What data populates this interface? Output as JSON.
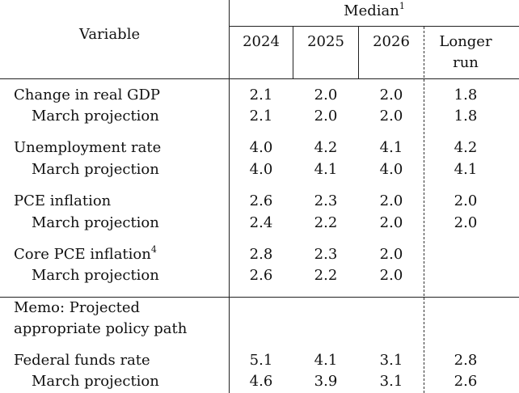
{
  "header": {
    "variable_label": "Variable",
    "median_label": "Median",
    "median_footnote": "1",
    "years": [
      "2024",
      "2025",
      "2026"
    ],
    "longer_run_line1": "Longer",
    "longer_run_line2": "run"
  },
  "rows": [
    {
      "label": "Change in real GDP",
      "values": [
        "2.1",
        "2.0",
        "2.0",
        "1.8"
      ]
    },
    {
      "label": "March projection",
      "values": [
        "2.1",
        "2.0",
        "2.0",
        "1.8"
      ]
    },
    {
      "label": "Unemployment rate",
      "values": [
        "4.0",
        "4.2",
        "4.1",
        "4.2"
      ]
    },
    {
      "label": "March projection",
      "values": [
        "4.0",
        "4.1",
        "4.0",
        "4.1"
      ]
    },
    {
      "label": "PCE inflation",
      "values": [
        "2.6",
        "2.3",
        "2.0",
        "2.0"
      ]
    },
    {
      "label": "March projection",
      "values": [
        "2.4",
        "2.2",
        "2.0",
        "2.0"
      ]
    },
    {
      "label": "Core PCE inflation",
      "footnote": "4",
      "values": [
        "2.8",
        "2.3",
        "2.0",
        ""
      ]
    },
    {
      "label": "March projection",
      "values": [
        "2.6",
        "2.2",
        "2.0",
        ""
      ]
    }
  ],
  "memo": {
    "line1": "Memo: Projected",
    "line2": "appropriate policy path"
  },
  "memo_rows": [
    {
      "label": "Federal funds rate",
      "values": [
        "5.1",
        "4.1",
        "3.1",
        "2.8"
      ]
    },
    {
      "label": "March projection",
      "values": [
        "4.6",
        "3.9",
        "3.1",
        "2.6"
      ]
    }
  ]
}
